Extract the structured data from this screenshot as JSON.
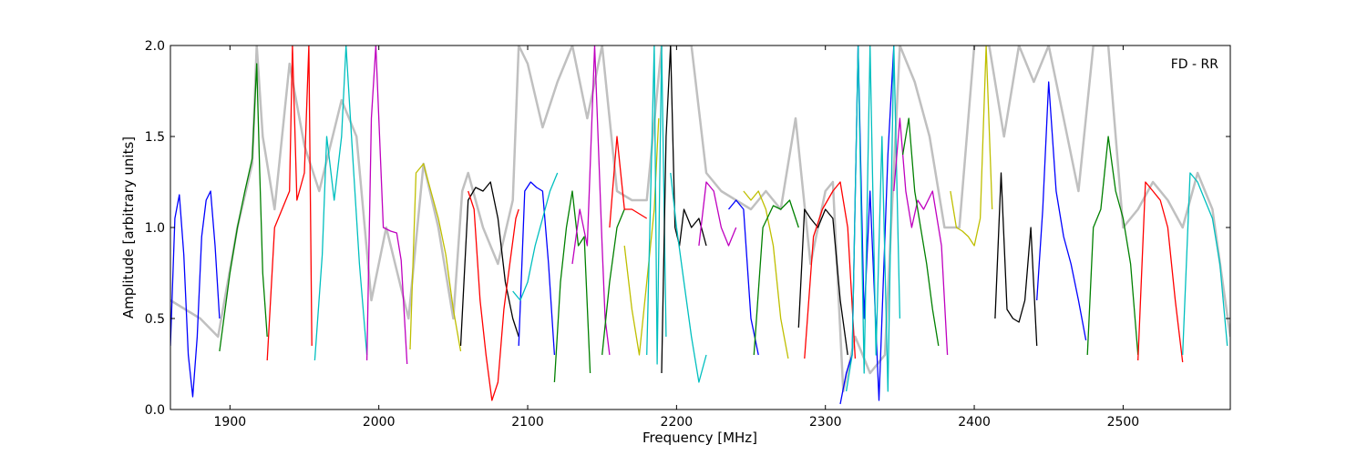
{
  "chart_data": {
    "type": "line",
    "title": "",
    "annotation": "FD - RR",
    "xlabel": "Frequency [MHz]",
    "ylabel": "Amplitude [arbitrary units]",
    "xlim": [
      1860,
      2572
    ],
    "ylim": [
      0.0,
      2.0
    ],
    "x_ticks": [
      1900,
      2000,
      2100,
      2200,
      2300,
      2400,
      2500
    ],
    "x_tick_labels": [
      "1900",
      "2000",
      "2100",
      "2200",
      "2300",
      "2400",
      "2500"
    ],
    "y_ticks": [
      0.0,
      0.5,
      1.0,
      1.5,
      2.0
    ],
    "y_tick_labels": [
      "0.0",
      "0.5",
      "1.0",
      "1.5",
      "2.0"
    ],
    "grid": false,
    "legend": "none",
    "colors": {
      "background": "#c0c0c0",
      "palette": [
        "#0000ff",
        "#008000",
        "#ff0000",
        "#00bfbf",
        "#bf00bf",
        "#bfbf00",
        "#000000"
      ]
    },
    "series": [
      {
        "color": "#c0c0c0",
        "x": [
          1860,
          1880,
          1892,
          1905,
          1915,
          1918,
          1922,
          1930,
          1940,
          1950,
          1960,
          1975,
          1985,
          1995,
          2005,
          2020,
          2030,
          2040,
          2050,
          2056,
          2060,
          2070,
          2080,
          2090,
          2094,
          2100,
          2110,
          2120,
          2130,
          2140,
          2150,
          2160,
          2170,
          2180,
          2190,
          2200,
          2210,
          2220,
          2230,
          2240,
          2250,
          2260,
          2270,
          2280,
          2290,
          2300,
          2305,
          2312,
          2320,
          2330,
          2340,
          2350,
          2360,
          2370,
          2380,
          2390,
          2400,
          2410,
          2420,
          2430,
          2440,
          2450,
          2460,
          2470,
          2480,
          2490,
          2500,
          2510,
          2520,
          2530,
          2540,
          2550,
          2560,
          2572
        ],
        "y": [
          0.6,
          0.5,
          0.4,
          1.0,
          1.35,
          2.0,
          1.5,
          1.1,
          1.9,
          1.45,
          1.2,
          1.7,
          1.5,
          0.6,
          1.0,
          0.5,
          1.35,
          1.0,
          0.5,
          1.2,
          1.3,
          1.0,
          0.8,
          1.15,
          2.0,
          1.9,
          1.55,
          1.8,
          2.0,
          1.6,
          2.0,
          1.2,
          1.15,
          1.15,
          2.0,
          2.0,
          2.0,
          1.3,
          1.2,
          1.15,
          1.1,
          1.2,
          1.1,
          1.6,
          0.8,
          1.2,
          1.25,
          0.1,
          0.4,
          0.2,
          0.3,
          2.0,
          1.8,
          1.5,
          1.0,
          1.0,
          2.0,
          2.0,
          1.5,
          2.0,
          1.8,
          2.0,
          1.6,
          1.2,
          2.0,
          2.0,
          1.0,
          1.1,
          1.25,
          1.15,
          1.0,
          1.3,
          1.1,
          0.4
        ]
      },
      {
        "color": "#0000ff",
        "x": [
          1860,
          1863,
          1866,
          1869,
          1872,
          1875,
          1878,
          1881,
          1884,
          1887,
          1890,
          1893
        ],
        "y": [
          0.35,
          1.05,
          1.18,
          0.85,
          0.3,
          0.07,
          0.4,
          0.95,
          1.15,
          1.2,
          0.9,
          0.5
        ]
      },
      {
        "color": "#008000",
        "x": [
          1893,
          1900,
          1905,
          1910,
          1915,
          1918,
          1920,
          1922,
          1925
        ],
        "y": [
          0.32,
          0.75,
          1.0,
          1.2,
          1.38,
          1.9,
          1.3,
          0.75,
          0.4
        ]
      },
      {
        "color": "#ff0000",
        "x": [
          1925,
          1930,
          1935,
          1940,
          1942,
          1945,
          1950,
          1953,
          1955
        ],
        "y": [
          0.27,
          1.0,
          1.1,
          1.2,
          2.0,
          1.15,
          1.3,
          2.0,
          0.35
        ]
      },
      {
        "color": "#00bfbf",
        "x": [
          1957,
          1962,
          1965,
          1970,
          1975,
          1978,
          1982,
          1987,
          1992
        ],
        "y": [
          0.27,
          0.85,
          1.5,
          1.15,
          1.5,
          2.0,
          1.45,
          0.8,
          0.3
        ]
      },
      {
        "color": "#bf00bf",
        "x": [
          1992,
          1995,
          1998,
          2003,
          2008,
          2012,
          2015,
          2019
        ],
        "y": [
          0.27,
          1.6,
          2.0,
          1.0,
          0.98,
          0.97,
          0.82,
          0.25
        ]
      },
      {
        "color": "#bfbf00",
        "x": [
          2021,
          2025,
          2030,
          2035,
          2040,
          2045,
          2050,
          2055
        ],
        "y": [
          0.33,
          1.3,
          1.35,
          1.2,
          1.05,
          0.85,
          0.55,
          0.32
        ]
      },
      {
        "color": "#000000",
        "x": [
          2055,
          2060,
          2065,
          2070,
          2075,
          2080,
          2085,
          2090,
          2094
        ],
        "y": [
          0.35,
          1.15,
          1.22,
          1.2,
          1.25,
          1.05,
          0.7,
          0.5,
          0.4
        ]
      },
      {
        "color": "#ff0000",
        "x": [
          2060,
          2064,
          2068,
          2072,
          2076,
          2080,
          2084,
          2088,
          2092,
          2094
        ],
        "y": [
          1.2,
          1.1,
          0.6,
          0.3,
          0.05,
          0.15,
          0.55,
          0.8,
          1.05,
          1.1
        ]
      },
      {
        "color": "#0000ff",
        "x": [
          2094,
          2098,
          2102,
          2106,
          2110,
          2114,
          2118
        ],
        "y": [
          0.35,
          1.2,
          1.25,
          1.22,
          1.2,
          0.8,
          0.3
        ]
      },
      {
        "color": "#00bfbf",
        "x": [
          2090,
          2095,
          2100,
          2105,
          2110,
          2115,
          2120
        ],
        "y": [
          0.65,
          0.6,
          0.7,
          0.9,
          1.05,
          1.2,
          1.3
        ]
      },
      {
        "color": "#008000",
        "x": [
          2118,
          2122,
          2126,
          2130,
          2134,
          2138,
          2142
        ],
        "y": [
          0.15,
          0.7,
          1.0,
          1.2,
          0.9,
          0.95,
          0.2
        ]
      },
      {
        "color": "#bf00bf",
        "x": [
          2130,
          2135,
          2140,
          2145,
          2150,
          2152,
          2155
        ],
        "y": [
          0.8,
          1.1,
          0.9,
          2.0,
          0.9,
          0.5,
          0.3
        ]
      },
      {
        "color": "#008000",
        "x": [
          2150,
          2155,
          2160,
          2165
        ],
        "y": [
          0.3,
          0.7,
          1.0,
          1.1
        ]
      },
      {
        "color": "#ff0000",
        "x": [
          2155,
          2160,
          2165,
          2170,
          2180
        ],
        "y": [
          1.0,
          1.5,
          1.1,
          1.1,
          1.05
        ]
      },
      {
        "color": "#bfbf00",
        "x": [
          2165,
          2170,
          2175,
          2180,
          2185,
          2188
        ],
        "y": [
          0.9,
          0.55,
          0.3,
          0.7,
          1.1,
          1.6
        ]
      },
      {
        "color": "#00bfbf",
        "x": [
          2180,
          2185,
          2187,
          2190,
          2193
        ],
        "y": [
          0.3,
          2.0,
          0.25,
          2.0,
          0.4
        ]
      },
      {
        "color": "#000000",
        "x": [
          2190,
          2193,
          2196,
          2199,
          2202,
          2205,
          2210,
          2215,
          2220
        ],
        "y": [
          0.2,
          1.5,
          2.0,
          1.0,
          0.9,
          1.1,
          1.0,
          1.05,
          0.9
        ]
      },
      {
        "color": "#00bfbf",
        "x": [
          2196,
          2200,
          2205,
          2210,
          2215,
          2220
        ],
        "y": [
          1.3,
          1.0,
          0.7,
          0.4,
          0.15,
          0.3
        ]
      },
      {
        "color": "#bf00bf",
        "x": [
          2215,
          2220,
          2225,
          2230,
          2235,
          2240
        ],
        "y": [
          0.9,
          1.25,
          1.2,
          1.0,
          0.9,
          1.0
        ]
      },
      {
        "color": "#0000ff",
        "x": [
          2235,
          2240,
          2245,
          2250,
          2255
        ],
        "y": [
          1.1,
          1.15,
          1.1,
          0.5,
          0.3
        ]
      },
      {
        "color": "#bfbf00",
        "x": [
          2245,
          2250,
          2255,
          2260,
          2265,
          2270,
          2275
        ],
        "y": [
          1.2,
          1.15,
          1.2,
          1.1,
          0.9,
          0.5,
          0.28
        ]
      },
      {
        "color": "#008000",
        "x": [
          2252,
          2258,
          2265,
          2270,
          2276,
          2282
        ],
        "y": [
          0.3,
          1.0,
          1.12,
          1.1,
          1.15,
          1.0
        ]
      },
      {
        "color": "#000000",
        "x": [
          2282,
          2286,
          2290,
          2295,
          2300,
          2305,
          2310,
          2315
        ],
        "y": [
          0.45,
          1.1,
          1.05,
          1.0,
          1.1,
          1.05,
          0.6,
          0.3
        ]
      },
      {
        "color": "#ff0000",
        "x": [
          2286,
          2292,
          2298,
          2305,
          2310,
          2315,
          2320
        ],
        "y": [
          0.28,
          0.95,
          1.1,
          1.2,
          1.25,
          1.0,
          0.28
        ]
      },
      {
        "color": "#0000ff",
        "x": [
          2310,
          2314,
          2318,
          2322,
          2326,
          2330,
          2336,
          2342,
          2346
        ],
        "y": [
          0.03,
          0.2,
          0.3,
          2.0,
          0.5,
          1.2,
          0.05,
          1.4,
          2.0
        ]
      },
      {
        "color": "#00bfbf",
        "x": [
          2314,
          2318,
          2322,
          2326,
          2330,
          2334,
          2338,
          2342,
          2346,
          2350
        ],
        "y": [
          0.1,
          0.3,
          2.0,
          0.2,
          2.0,
          0.3,
          1.5,
          0.1,
          2.0,
          0.5
        ]
      },
      {
        "color": "#bf00bf",
        "x": [
          2346,
          2350,
          2354,
          2358,
          2362,
          2366,
          2372,
          2378,
          2382
        ],
        "y": [
          1.2,
          1.6,
          1.2,
          1.0,
          1.15,
          1.1,
          1.2,
          0.9,
          0.3
        ]
      },
      {
        "color": "#008000",
        "x": [
          2352,
          2356,
          2360,
          2364,
          2368,
          2372,
          2376
        ],
        "y": [
          1.4,
          1.6,
          1.2,
          1.0,
          0.8,
          0.55,
          0.35
        ]
      },
      {
        "color": "#bfbf00",
        "x": [
          2384,
          2388,
          2392,
          2396,
          2400,
          2404,
          2408,
          2412
        ],
        "y": [
          1.2,
          1.0,
          0.98,
          0.95,
          0.9,
          1.05,
          2.0,
          1.1
        ]
      },
      {
        "color": "#000000",
        "x": [
          2414,
          2418,
          2422,
          2426,
          2430,
          2434,
          2438,
          2442
        ],
        "y": [
          0.5,
          1.3,
          0.55,
          0.5,
          0.48,
          0.6,
          1.0,
          0.35
        ]
      },
      {
        "color": "#0000ff",
        "x": [
          2442,
          2446,
          2450,
          2455,
          2460,
          2465,
          2470,
          2475
        ],
        "y": [
          0.6,
          1.1,
          1.8,
          1.2,
          0.95,
          0.8,
          0.6,
          0.38
        ]
      },
      {
        "color": "#008000",
        "x": [
          2476,
          2480,
          2485,
          2490,
          2495,
          2500,
          2505,
          2510
        ],
        "y": [
          0.3,
          1.0,
          1.1,
          1.5,
          1.2,
          1.05,
          0.8,
          0.3
        ]
      },
      {
        "color": "#ff0000",
        "x": [
          2510,
          2515,
          2520,
          2525,
          2530,
          2535,
          2540
        ],
        "y": [
          0.27,
          1.25,
          1.2,
          1.15,
          1.0,
          0.6,
          0.26
        ]
      },
      {
        "color": "#00bfbf",
        "x": [
          2540,
          2545,
          2550,
          2555,
          2560,
          2565,
          2570
        ],
        "y": [
          0.3,
          1.3,
          1.25,
          1.15,
          1.05,
          0.8,
          0.35
        ]
      }
    ]
  }
}
